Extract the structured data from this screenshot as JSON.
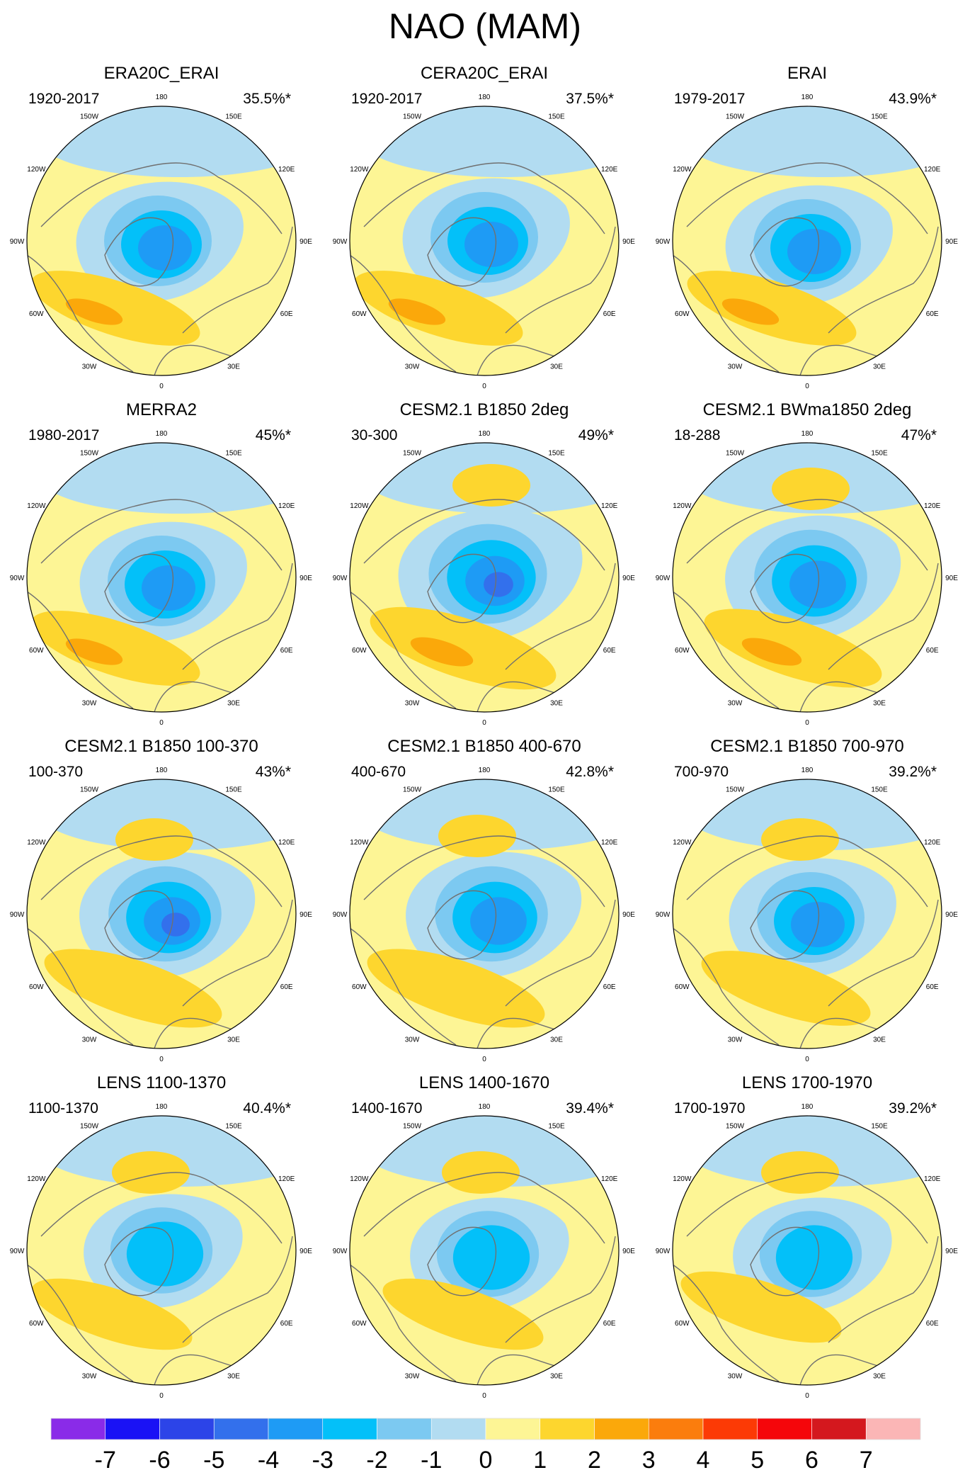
{
  "title": "NAO (MAM)",
  "colors": {
    "ocean_line": "#707070",
    "plus_lon_line": "#777777",
    "neutral_pos": "#fdf595",
    "neutral_neg": "#b2dcf1"
  },
  "chart_data": {
    "type": "heatmap",
    "projection": "north-polar-stereographic",
    "longitude_labels": [
      "180",
      "150E",
      "120E",
      "90E",
      "60E",
      "30E",
      "0",
      "30W",
      "60W",
      "90W",
      "120W",
      "150W"
    ],
    "panels": [
      {
        "title": "ERA20C_ERAI",
        "period": "1920-2017",
        "variance": "35.5%*"
      },
      {
        "title": "CERA20C_ERAI",
        "period": "1920-2017",
        "variance": "37.5%*"
      },
      {
        "title": "ERAI",
        "period": "1979-2017",
        "variance": "43.9%*"
      },
      {
        "title": "MERRA2",
        "period": "1980-2017",
        "variance": "45%*"
      },
      {
        "title": "CESM2.1 B1850 2deg",
        "period": "30-300",
        "variance": "49%*"
      },
      {
        "title": "CESM2.1 BWma1850 2deg",
        "period": "18-288",
        "variance": "47%*"
      },
      {
        "title": "CESM2.1 B1850 100-370",
        "period": "100-370",
        "variance": "43%*"
      },
      {
        "title": "CESM2.1 B1850 400-670",
        "period": "400-670",
        "variance": "42.8%*"
      },
      {
        "title": "CESM2.1 B1850 700-970",
        "period": "700-970",
        "variance": "39.2%*"
      },
      {
        "title": "LENS 1100-1370",
        "period": "1100-1370",
        "variance": "40.4%*"
      },
      {
        "title": "LENS 1400-1670",
        "period": "1400-1670",
        "variance": "39.4%*"
      },
      {
        "title": "LENS 1700-1970",
        "period": "1700-1970",
        "variance": "39.2%*"
      }
    ],
    "colorbar": {
      "labels": [
        "-7",
        "-6",
        "-5",
        "-4",
        "-3",
        "-2",
        "-1",
        "0",
        "1",
        "2",
        "3",
        "4",
        "5",
        "6",
        "7"
      ],
      "colors": [
        "#8a2be8",
        "#1a12f5",
        "#2c44e8",
        "#3370ec",
        "#1e9bf5",
        "#03c0f9",
        "#7cc9f1",
        "#b2dcf1",
        "#fdf595",
        "#fdd62e",
        "#fba80a",
        "#fb7d0d",
        "#fc3a05",
        "#f5060a",
        "#d4181e",
        "#fbb6b6"
      ]
    }
  }
}
